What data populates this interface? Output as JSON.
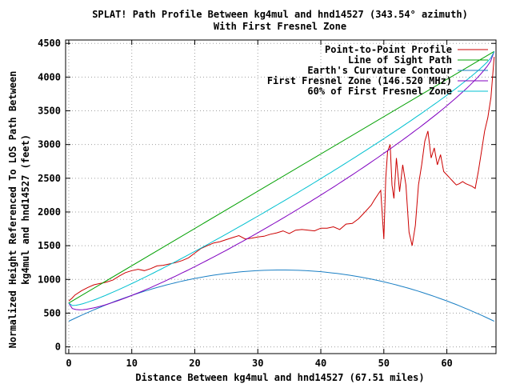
{
  "chart_data": {
    "type": "line",
    "title_line1": "SPLAT! Path Profile Between kg4mul and hnd14527 (343.54° azimuth)",
    "title_line2": "With First Fresnel Zone",
    "xlabel": "Distance Between kg4mul and hnd14527 (67.51 miles)",
    "ylabel_line1": "Normalized Height Referenced To LOS Path Between",
    "ylabel_line2": "kg4mul and hnd14527 (feet)",
    "xlim": [
      -0.5,
      67.8
    ],
    "ylim": [
      -100,
      4550
    ],
    "xticks": [
      0,
      10,
      20,
      30,
      40,
      50,
      60
    ],
    "yticks": [
      0,
      500,
      1000,
      1500,
      2000,
      2500,
      3000,
      3500,
      4000,
      4500
    ],
    "grid": true,
    "legend_position": "top-right",
    "series": [
      {
        "name": "Point-to-Point Profile",
        "color": "#cc0000",
        "x": [
          0,
          0.5,
          1,
          2,
          3,
          4,
          5,
          6,
          7,
          8,
          9,
          10,
          11,
          12,
          13,
          14,
          15,
          16,
          17,
          18,
          19,
          20,
          21,
          22,
          23,
          24,
          25,
          26,
          27,
          28,
          29,
          30,
          31,
          32,
          33,
          34,
          35,
          36,
          37,
          38,
          39,
          40,
          41,
          42,
          43,
          44,
          45,
          46,
          47,
          48,
          48.5,
          49,
          49.5,
          50,
          50.3,
          50.6,
          51,
          51.3,
          51.6,
          52,
          52.5,
          53,
          53.5,
          54,
          54.5,
          55,
          55.5,
          56,
          56.5,
          57,
          57.5,
          58,
          58.5,
          59,
          59.5,
          60,
          60.5,
          61,
          61.5,
          62,
          62.5,
          63,
          63.5,
          64,
          64.5,
          65,
          65.5,
          66,
          66.5,
          67,
          67.51
        ],
        "y": [
          680,
          720,
          770,
          830,
          880,
          920,
          940,
          960,
          990,
          1050,
          1100,
          1130,
          1150,
          1130,
          1160,
          1200,
          1210,
          1230,
          1250,
          1280,
          1320,
          1390,
          1460,
          1500,
          1540,
          1560,
          1590,
          1620,
          1650,
          1600,
          1610,
          1630,
          1640,
          1670,
          1690,
          1720,
          1680,
          1730,
          1740,
          1730,
          1720,
          1760,
          1760,
          1780,
          1740,
          1820,
          1830,
          1900,
          2000,
          2100,
          2180,
          2250,
          2320,
          1600,
          2500,
          2900,
          3000,
          2400,
          2200,
          2800,
          2300,
          2700,
          2400,
          1700,
          1500,
          1800,
          2400,
          2700,
          3050,
          3200,
          2800,
          2950,
          2700,
          2850,
          2600,
          2550,
          2500,
          2450,
          2400,
          2420,
          2450,
          2420,
          2400,
          2380,
          2350,
          2600,
          2900,
          3200,
          3400,
          3700,
          4300
        ]
      },
      {
        "name": "Line of Sight Path",
        "color": "#00a000",
        "x": [
          0,
          67.51
        ],
        "y": [
          650,
          4380
        ]
      },
      {
        "name": "Earth's Curvature Contour",
        "color": "#1a7fc4",
        "curve": "parabola",
        "x_start": 0,
        "x_end": 67.51,
        "y_start": 380,
        "y_end": 380,
        "y_peak": 1140
      },
      {
        "name": "First Fresnel Zone (146.520 MHz)",
        "color": "#8000c0",
        "curve": "fresnel",
        "fresnel_depth": 620
      },
      {
        "name": "60% of First Fresnel Zone",
        "color": "#00c0d0",
        "curve": "fresnel",
        "fresnel_depth": 372
      }
    ]
  }
}
